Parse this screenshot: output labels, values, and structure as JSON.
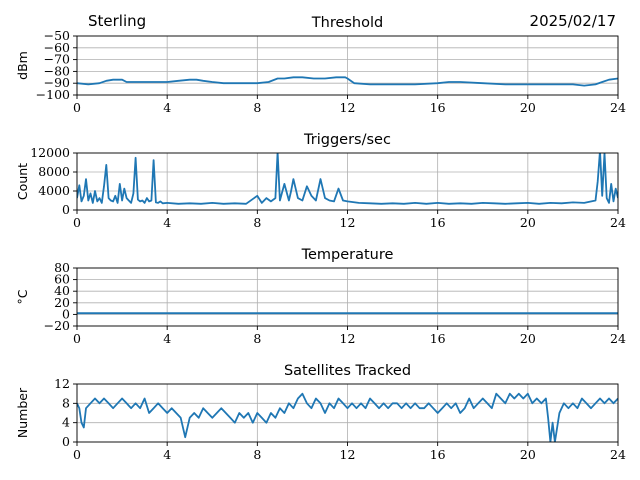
{
  "header": {
    "site": "Sterling",
    "date": "2025/02/17"
  },
  "colors": {
    "series": "#1f77b4",
    "grid": "#b0b0b0",
    "axis": "#000000"
  },
  "chart_data": [
    {
      "type": "line",
      "title": "Threshold",
      "ylabel": "dBm",
      "xlim": [
        0,
        24
      ],
      "ylim": [
        -100,
        -50
      ],
      "xticks": [
        0,
        4,
        8,
        12,
        16,
        20,
        24
      ],
      "yticks": [
        -100,
        -90,
        -80,
        -70,
        -60,
        -50
      ],
      "ytick_labels": [
        "−100",
        "−90",
        "−80",
        "−70",
        "−60",
        "−50"
      ],
      "grid": true,
      "series": [
        {
          "x": [
            0,
            0.5,
            1.0,
            1.3,
            1.6,
            2.0,
            2.2,
            2.6,
            3.0,
            3.5,
            4.0,
            4.5,
            5.0,
            5.3,
            5.6,
            6.0,
            6.5,
            7.0,
            7.5,
            8.0,
            8.5,
            8.9,
            9.2,
            9.6,
            10.0,
            10.5,
            11.0,
            11.5,
            11.9,
            12.0,
            12.3,
            13.0,
            14.0,
            15.0,
            16.0,
            16.5,
            17.0,
            18.0,
            19.0,
            20.0,
            21.0,
            22.0,
            22.5,
            23.0,
            23.3,
            23.6,
            24.0
          ],
          "values": [
            -90,
            -91,
            -90,
            -88,
            -87,
            -87,
            -89,
            -89,
            -89,
            -89,
            -89,
            -88,
            -87,
            -87,
            -88,
            -89,
            -90,
            -90,
            -90,
            -90,
            -89,
            -86,
            -86,
            -85,
            -85,
            -86,
            -86,
            -85,
            -85,
            -86,
            -90,
            -91,
            -91,
            -91,
            -90,
            -89,
            -89,
            -90,
            -91,
            -91,
            -91,
            -91,
            -92,
            -91,
            -89,
            -87,
            -86
          ]
        }
      ]
    },
    {
      "type": "line",
      "title": "Triggers/sec",
      "ylabel": "Count",
      "xlim": [
        0,
        24
      ],
      "ylim": [
        0,
        12000
      ],
      "xticks": [
        0,
        4,
        8,
        12,
        16,
        20,
        24
      ],
      "yticks": [
        0,
        4000,
        8000,
        12000
      ],
      "ytick_labels": [
        "0",
        "4000",
        "8000",
        "12000"
      ],
      "grid": true,
      "series": [
        {
          "x": [
            0,
            0.1,
            0.2,
            0.3,
            0.4,
            0.5,
            0.6,
            0.7,
            0.8,
            0.9,
            1.0,
            1.1,
            1.2,
            1.3,
            1.4,
            1.5,
            1.6,
            1.7,
            1.8,
            1.9,
            2.0,
            2.1,
            2.2,
            2.3,
            2.4,
            2.5,
            2.6,
            2.7,
            2.8,
            2.9,
            3.0,
            3.1,
            3.2,
            3.3,
            3.4,
            3.5,
            3.6,
            3.7,
            3.8,
            4.0,
            4.5,
            5.0,
            5.5,
            6.0,
            6.5,
            7.0,
            7.5,
            8.0,
            8.2,
            8.4,
            8.6,
            8.8,
            8.9,
            9.0,
            9.2,
            9.4,
            9.5,
            9.6,
            9.8,
            10.0,
            10.2,
            10.4,
            10.6,
            10.8,
            11.0,
            11.2,
            11.4,
            11.6,
            11.8,
            12.0,
            12.5,
            13.0,
            13.5,
            14.0,
            14.5,
            15.0,
            15.5,
            16.0,
            16.5,
            17.0,
            17.5,
            18.0,
            18.5,
            19.0,
            19.5,
            20.0,
            20.5,
            21.0,
            21.5,
            22.0,
            22.5,
            23.0,
            23.1,
            23.2,
            23.3,
            23.4,
            23.5,
            23.6,
            23.7,
            23.8,
            23.9,
            24.0
          ],
          "values": [
            2500,
            5200,
            1800,
            3000,
            6500,
            2000,
            3500,
            1500,
            4000,
            1800,
            2500,
            1500,
            5000,
            9500,
            2500,
            2000,
            1800,
            3000,
            1500,
            5500,
            2000,
            4500,
            2500,
            2000,
            1500,
            3500,
            11000,
            2200,
            1800,
            2000,
            1500,
            2500,
            1800,
            2000,
            10500,
            1600,
            1500,
            1800,
            1400,
            1500,
            1300,
            1400,
            1300,
            1500,
            1300,
            1400,
            1300,
            3000,
            1500,
            2500,
            1800,
            2500,
            12200,
            2000,
            5500,
            2000,
            4000,
            6500,
            2500,
            2000,
            5000,
            3000,
            2000,
            6500,
            2500,
            2000,
            1800,
            4500,
            2000,
            1800,
            1500,
            1400,
            1300,
            1400,
            1300,
            1500,
            1300,
            1500,
            1300,
            1400,
            1300,
            1500,
            1400,
            1300,
            1400,
            1500,
            1300,
            1500,
            1400,
            1600,
            1500,
            2000,
            6000,
            12500,
            3000,
            12000,
            2500,
            1500,
            5500,
            1800,
            4500,
            2500
          ]
        }
      ]
    },
    {
      "type": "line",
      "title": "Temperature",
      "ylabel": "°C",
      "xlim": [
        0,
        24
      ],
      "ylim": [
        -20,
        80
      ],
      "xticks": [
        0,
        4,
        8,
        12,
        16,
        20,
        24
      ],
      "yticks": [
        -20,
        0,
        20,
        40,
        60,
        80
      ],
      "ytick_labels": [
        "−20",
        "0",
        "20",
        "40",
        "60",
        "80"
      ],
      "grid": true,
      "series": [
        {
          "x": [
            0,
            24
          ],
          "values": [
            2,
            2
          ]
        }
      ]
    },
    {
      "type": "line",
      "title": "Satellites Tracked",
      "ylabel": "Number",
      "xlim": [
        0,
        24
      ],
      "ylim": [
        0,
        12
      ],
      "xticks": [
        0,
        4,
        8,
        12,
        16,
        20,
        24
      ],
      "yticks": [
        0,
        4,
        8,
        12
      ],
      "ytick_labels": [
        "0",
        "4",
        "8",
        "12"
      ],
      "grid": true,
      "series": [
        {
          "x": [
            0,
            0.1,
            0.2,
            0.3,
            0.4,
            0.6,
            0.8,
            1.0,
            1.2,
            1.4,
            1.6,
            1.8,
            2.0,
            2.2,
            2.4,
            2.6,
            2.8,
            3.0,
            3.2,
            3.4,
            3.6,
            3.8,
            4.0,
            4.2,
            4.4,
            4.6,
            4.8,
            5.0,
            5.2,
            5.4,
            5.6,
            5.8,
            6.0,
            6.2,
            6.4,
            6.6,
            6.8,
            7.0,
            7.2,
            7.4,
            7.6,
            7.8,
            8.0,
            8.2,
            8.4,
            8.6,
            8.8,
            9.0,
            9.2,
            9.4,
            9.6,
            9.8,
            10.0,
            10.2,
            10.4,
            10.6,
            10.8,
            11.0,
            11.2,
            11.4,
            11.6,
            11.8,
            12.0,
            12.2,
            12.4,
            12.6,
            12.8,
            13.0,
            13.2,
            13.4,
            13.6,
            13.8,
            14.0,
            14.2,
            14.4,
            14.6,
            14.8,
            15.0,
            15.2,
            15.4,
            15.6,
            15.8,
            16.0,
            16.2,
            16.4,
            16.6,
            16.8,
            17.0,
            17.2,
            17.4,
            17.6,
            17.8,
            18.0,
            18.2,
            18.4,
            18.6,
            18.8,
            19.0,
            19.2,
            19.4,
            19.6,
            19.8,
            20.0,
            20.2,
            20.4,
            20.6,
            20.8,
            20.9,
            21.0,
            21.1,
            21.2,
            21.4,
            21.6,
            21.8,
            22.0,
            22.2,
            22.4,
            22.6,
            22.8,
            23.0,
            23.2,
            23.4,
            23.6,
            23.8,
            24.0
          ],
          "values": [
            8,
            7,
            4,
            3,
            7,
            8,
            9,
            8,
            9,
            8,
            7,
            8,
            9,
            8,
            7,
            8,
            7,
            9,
            6,
            7,
            8,
            7,
            6,
            7,
            6,
            5,
            1,
            5,
            6,
            5,
            7,
            6,
            5,
            6,
            7,
            6,
            5,
            4,
            6,
            5,
            6,
            4,
            6,
            5,
            4,
            6,
            5,
            7,
            6,
            8,
            7,
            9,
            10,
            8,
            7,
            9,
            8,
            6,
            8,
            7,
            9,
            8,
            7,
            8,
            7,
            8,
            7,
            9,
            8,
            7,
            8,
            7,
            8,
            8,
            7,
            8,
            7,
            8,
            7,
            7,
            8,
            7,
            6,
            7,
            8,
            7,
            8,
            6,
            7,
            9,
            7,
            8,
            9,
            8,
            7,
            10,
            9,
            8,
            10,
            9,
            10,
            9,
            10,
            8,
            9,
            8,
            9,
            5,
            0,
            4,
            0,
            6,
            8,
            7,
            8,
            7,
            9,
            8,
            7,
            8,
            9,
            8,
            9,
            8,
            9
          ]
        }
      ]
    }
  ]
}
